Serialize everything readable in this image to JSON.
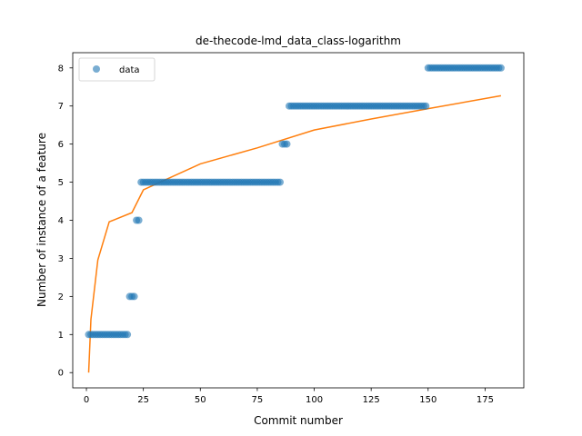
{
  "chart_data": {
    "type": "scatter",
    "title": "de-thecode-lmd_data_class-logarithm",
    "xlabel": "Commit number",
    "ylabel": "Number of instance of a feature",
    "xlim": [
      -6,
      192
    ],
    "ylim": [
      -0.4,
      8.4
    ],
    "xticks": [
      0,
      25,
      50,
      75,
      100,
      125,
      150,
      175
    ],
    "yticks": [
      0,
      1,
      2,
      3,
      4,
      5,
      6,
      7,
      8
    ],
    "grid": false,
    "legend": {
      "placement": "top-left",
      "entries": [
        "data"
      ]
    },
    "colors": {
      "data": "#1f77b4",
      "fit": "#ff7f0e"
    },
    "series": [
      {
        "name": "data",
        "kind": "scatter",
        "steps": [
          {
            "x_from": 1,
            "x_to": 18,
            "y": 1
          },
          {
            "x_from": 19,
            "x_to": 21,
            "y": 2
          },
          {
            "x_from": 22,
            "x_to": 23,
            "y": 4
          },
          {
            "x_from": 24,
            "x_to": 85,
            "y": 5
          },
          {
            "x_from": 86,
            "x_to": 88,
            "y": 6
          },
          {
            "x_from": 89,
            "x_to": 149,
            "y": 7
          },
          {
            "x_from": 150,
            "x_to": 182,
            "y": 8
          }
        ]
      },
      {
        "kind": "line",
        "model": "logarithmic",
        "x": [
          1,
          2,
          5,
          10,
          20,
          25,
          50,
          75,
          100,
          125,
          150,
          182
        ],
        "y": [
          0.0,
          1.4,
          2.96,
          3.96,
          4.2,
          4.8,
          5.48,
          5.9,
          6.37,
          6.66,
          6.93,
          7.27
        ]
      }
    ]
  }
}
